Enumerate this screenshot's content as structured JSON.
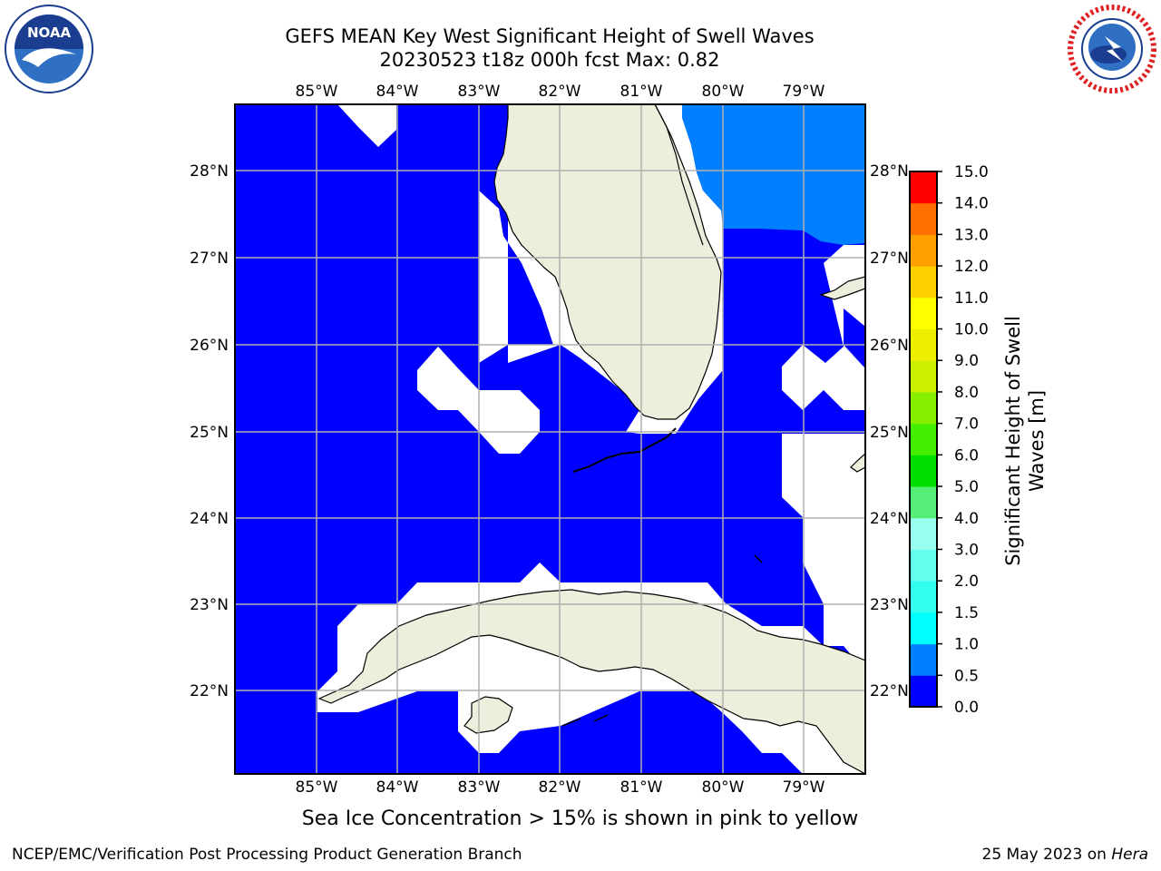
{
  "header": {
    "title_line1": "GEFS MEAN Key West Significant Height of Swell Waves",
    "title_line2": "20230523 t18z 000h fcst   Max: 0.82"
  },
  "logos": {
    "left": {
      "icon": "noaa-logo-icon",
      "text": "NOAA"
    },
    "right": {
      "icon": "national-weather-service-logo-icon",
      "text": "NATIONAL WEATHER SERVICE"
    }
  },
  "map": {
    "lon_labels": [
      "85°W",
      "84°W",
      "83°W",
      "82°W",
      "81°W",
      "80°W",
      "79°W"
    ],
    "lat_labels": [
      "28°N",
      "27°N",
      "26°N",
      "25°N",
      "24°N",
      "23°N",
      "22°N"
    ],
    "colors": {
      "ocean_low": "#0000ff",
      "ocean_mid": "#0080ff",
      "land": "#eeeedd",
      "no_data": "#ffffff",
      "grid": "#b0b0b0"
    }
  },
  "colorbar": {
    "label": "Significant Height of Swell Waves [m]",
    "label_line1": "Significant Height of Swell",
    "label_line2": "Waves [m]",
    "tick_labels": [
      "0.0",
      "0.5",
      "1.0",
      "1.5",
      "2.0",
      "3.0",
      "4.0",
      "5.0",
      "6.0",
      "7.0",
      "8.0",
      "9.0",
      "10.0",
      "11.0",
      "12.0",
      "13.0",
      "14.0",
      "15.0"
    ],
    "colors": [
      "#0000ff",
      "#0080ff",
      "#00ffff",
      "#33ffee",
      "#66ffee",
      "#99ffee",
      "#55ee77",
      "#00dd00",
      "#44ee00",
      "#88ee00",
      "#ccee00",
      "#eeee00",
      "#ffff00",
      "#ffd000",
      "#ffa000",
      "#ff7000",
      "#ff4000",
      "#ff0000"
    ]
  },
  "footer": {
    "ice_note": "Sea Ice Concentration > 15% is shown in pink to yellow",
    "left": "NCEP/EMC/Verification Post Processing Product Generation Branch",
    "date": "25 May 2023 on ",
    "machine": "Hera"
  }
}
